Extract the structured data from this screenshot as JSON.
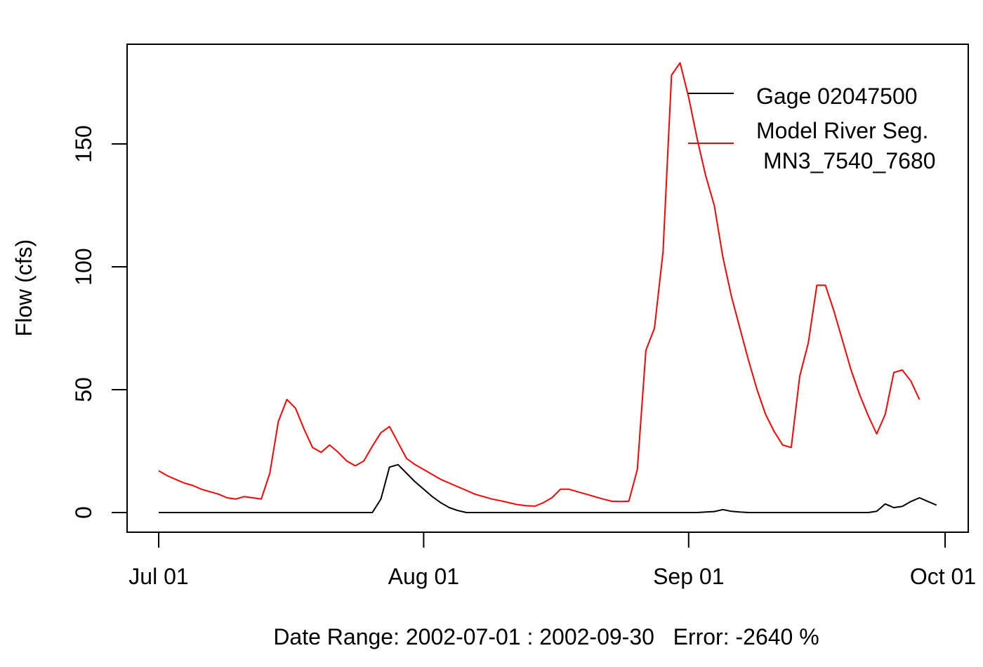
{
  "chart_data": {
    "type": "line",
    "title": "",
    "xlabel": "Date Range: 2002-07-01 : 2002-09-30   Error: -2640 %",
    "ylabel": "Flow (cfs)",
    "x_ticks": [
      {
        "date": "2002-07-01",
        "label": "Jul 01"
      },
      {
        "date": "2002-08-01",
        "label": "Aug 01"
      },
      {
        "date": "2002-09-01",
        "label": "Sep 01"
      },
      {
        "date": "2002-10-01",
        "label": "Oct 01"
      }
    ],
    "y_ticks": [
      0,
      50,
      100,
      150
    ],
    "xlim": [
      "2002-06-27",
      "2002-10-04"
    ],
    "ylim": [
      -8,
      190
    ],
    "grid": false,
    "legend_position": "top-right",
    "series": [
      {
        "name": "Gage 02047500",
        "color": "#000000",
        "points": [
          [
            "2002-07-01",
            0
          ],
          [
            "2002-07-10",
            0
          ],
          [
            "2002-07-20",
            0
          ],
          [
            "2002-07-26",
            0
          ],
          [
            "2002-07-27",
            5.5
          ],
          [
            "2002-07-28",
            18.5
          ],
          [
            "2002-07-29",
            19.5
          ],
          [
            "2002-07-30",
            16
          ],
          [
            "2002-07-31",
            12.5
          ],
          [
            "2002-08-01",
            9.5
          ],
          [
            "2002-08-02",
            6.5
          ],
          [
            "2002-08-03",
            4
          ],
          [
            "2002-08-04",
            2
          ],
          [
            "2002-08-05",
            0.8
          ],
          [
            "2002-08-06",
            0
          ],
          [
            "2002-08-20",
            0
          ],
          [
            "2002-09-02",
            0
          ],
          [
            "2002-09-03",
            0.2
          ],
          [
            "2002-09-04",
            0.4
          ],
          [
            "2002-09-05",
            1.2
          ],
          [
            "2002-09-06",
            0.5
          ],
          [
            "2002-09-07",
            0.2
          ],
          [
            "2002-09-08",
            0
          ],
          [
            "2002-09-22",
            0
          ],
          [
            "2002-09-23",
            0.5
          ],
          [
            "2002-09-24",
            3.5
          ],
          [
            "2002-09-25",
            2
          ],
          [
            "2002-09-26",
            2.5
          ],
          [
            "2002-09-27",
            4.5
          ],
          [
            "2002-09-28",
            6
          ],
          [
            "2002-09-29",
            4.5
          ],
          [
            "2002-09-30",
            3
          ]
        ]
      },
      {
        "name": "Model River Seg.",
        "name_line2": "MN3_7540_7680",
        "color": "#ff0000",
        "points": [
          [
            "2002-07-01",
            17
          ],
          [
            "2002-07-02",
            15
          ],
          [
            "2002-07-03",
            13.5
          ],
          [
            "2002-07-04",
            12
          ],
          [
            "2002-07-05",
            11
          ],
          [
            "2002-07-06",
            9.5
          ],
          [
            "2002-07-07",
            8.5
          ],
          [
            "2002-07-08",
            7.5
          ],
          [
            "2002-07-09",
            6
          ],
          [
            "2002-07-10",
            5.5
          ],
          [
            "2002-07-11",
            6.5
          ],
          [
            "2002-07-12",
            6
          ],
          [
            "2002-07-13",
            5.5
          ],
          [
            "2002-07-14",
            16
          ],
          [
            "2002-07-15",
            37
          ],
          [
            "2002-07-16",
            46
          ],
          [
            "2002-07-17",
            42.5
          ],
          [
            "2002-07-18",
            34
          ],
          [
            "2002-07-19",
            26.5
          ],
          [
            "2002-07-20",
            24.5
          ],
          [
            "2002-07-21",
            27.5
          ],
          [
            "2002-07-22",
            24.5
          ],
          [
            "2002-07-23",
            21
          ],
          [
            "2002-07-24",
            19
          ],
          [
            "2002-07-25",
            21
          ],
          [
            "2002-07-26",
            27
          ],
          [
            "2002-07-27",
            32.5
          ],
          [
            "2002-07-28",
            35
          ],
          [
            "2002-07-29",
            28.5
          ],
          [
            "2002-07-30",
            22
          ],
          [
            "2002-07-31",
            19.5
          ],
          [
            "2002-08-01",
            17.5
          ],
          [
            "2002-08-02",
            15.5
          ],
          [
            "2002-08-03",
            13.5
          ],
          [
            "2002-08-04",
            12
          ],
          [
            "2002-08-05",
            10.5
          ],
          [
            "2002-08-06",
            9
          ],
          [
            "2002-08-07",
            7.5
          ],
          [
            "2002-08-08",
            6.5
          ],
          [
            "2002-08-09",
            5.5
          ],
          [
            "2002-08-10",
            4.8
          ],
          [
            "2002-08-11",
            4
          ],
          [
            "2002-08-12",
            3.2
          ],
          [
            "2002-08-13",
            2.8
          ],
          [
            "2002-08-14",
            2.6
          ],
          [
            "2002-08-15",
            4
          ],
          [
            "2002-08-16",
            6
          ],
          [
            "2002-08-17",
            9.5
          ],
          [
            "2002-08-18",
            9.5
          ],
          [
            "2002-08-19",
            8.5
          ],
          [
            "2002-08-20",
            7.5
          ],
          [
            "2002-08-21",
            6.5
          ],
          [
            "2002-08-22",
            5.5
          ],
          [
            "2002-08-23",
            4.6
          ],
          [
            "2002-08-24",
            4.5
          ],
          [
            "2002-08-25",
            4.6
          ],
          [
            "2002-08-26",
            17.5
          ],
          [
            "2002-08-27",
            66
          ],
          [
            "2002-08-28",
            75
          ],
          [
            "2002-08-29",
            106
          ],
          [
            "2002-08-30",
            178
          ],
          [
            "2002-08-31",
            183
          ],
          [
            "2002-09-01",
            169
          ],
          [
            "2002-09-02",
            152
          ],
          [
            "2002-09-03",
            137
          ],
          [
            "2002-09-04",
            125
          ],
          [
            "2002-09-05",
            104
          ],
          [
            "2002-09-06",
            88
          ],
          [
            "2002-09-07",
            75
          ],
          [
            "2002-09-08",
            62
          ],
          [
            "2002-09-09",
            50
          ],
          [
            "2002-09-10",
            40
          ],
          [
            "2002-09-11",
            33
          ],
          [
            "2002-09-12",
            27.5
          ],
          [
            "2002-09-13",
            26.5
          ],
          [
            "2002-09-14",
            55.5
          ],
          [
            "2002-09-15",
            69
          ],
          [
            "2002-09-16",
            92.5
          ],
          [
            "2002-09-17",
            92.5
          ],
          [
            "2002-09-18",
            82
          ],
          [
            "2002-09-19",
            70
          ],
          [
            "2002-09-20",
            58
          ],
          [
            "2002-09-21",
            48
          ],
          [
            "2002-09-22",
            39.5
          ],
          [
            "2002-09-23",
            32
          ],
          [
            "2002-09-24",
            40
          ],
          [
            "2002-09-25",
            57
          ],
          [
            "2002-09-26",
            58
          ],
          [
            "2002-09-27",
            53.5
          ],
          [
            "2002-09-28",
            46
          ]
        ]
      }
    ]
  }
}
